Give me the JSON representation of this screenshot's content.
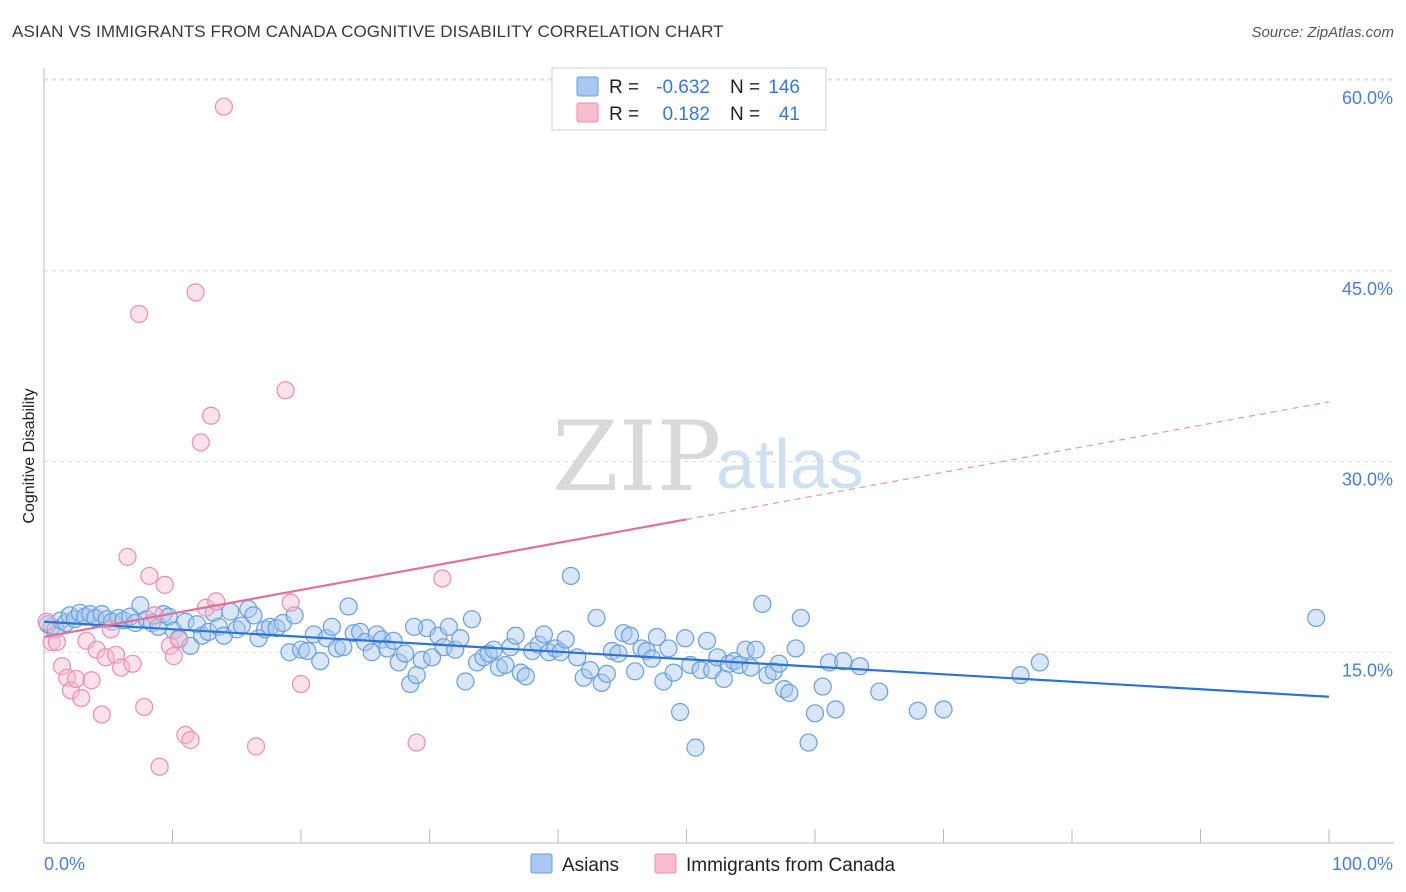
{
  "title": "ASIAN VS IMMIGRANTS FROM CANADA COGNITIVE DISABILITY CORRELATION CHART",
  "source": "Source: ZipAtlas.com",
  "watermark": {
    "zip": "ZIP",
    "atlas": "atlas"
  },
  "colors": {
    "asians_fill": "#a9c8ef",
    "asians_stroke": "#6a9fdc",
    "asians_line": "#2f73d0",
    "canada_fill": "#f6bccf",
    "canada_stroke": "#ea8fae",
    "canada_line": "#e2709a",
    "tick_label": "#4a7fcf",
    "grid": "#dddddd"
  },
  "legend": {
    "rows": [
      {
        "r_label": "R =",
        "r_value": "-0.632",
        "n_label": "N =",
        "n_value": "146"
      },
      {
        "r_label": "R =",
        "r_value": "0.182",
        "n_label": "N =",
        "n_value": "41"
      }
    ]
  },
  "chart_data": {
    "type": "scatter",
    "title": "ASIAN VS IMMIGRANTS FROM CANADA COGNITIVE DISABILITY CORRELATION CHART",
    "xlabel": "",
    "ylabel": "Cognitive Disability",
    "xlim": [
      0,
      100
    ],
    "ylim": [
      0,
      61
    ],
    "x_tick_labels": [
      "0.0%",
      "100.0%"
    ],
    "y_ticks": [
      15,
      30,
      45,
      60
    ],
    "y_tick_labels": [
      "15.0%",
      "30.0%",
      "45.0%",
      "60.0%"
    ],
    "grid": "horizontal dashed",
    "legend_position": "top-center",
    "series": [
      {
        "name": "Asians",
        "r": -0.632,
        "n": 146,
        "trend": {
          "x": [
            0,
            100
          ],
          "y": [
            17.4,
            11.5
          ]
        },
        "points": [
          [
            0.3,
            17.2
          ],
          [
            0.6,
            17.0
          ],
          [
            0.9,
            16.8
          ],
          [
            1.3,
            17.5
          ],
          [
            1.7,
            17.3
          ],
          [
            2.0,
            17.9
          ],
          [
            2.4,
            17.6
          ],
          [
            2.8,
            18.1
          ],
          [
            3.2,
            17.8
          ],
          [
            3.6,
            18.0
          ],
          [
            4.0,
            17.7
          ],
          [
            4.5,
            18.0
          ],
          [
            4.9,
            17.6
          ],
          [
            5.3,
            17.4
          ],
          [
            5.8,
            17.7
          ],
          [
            6.2,
            17.5
          ],
          [
            6.7,
            17.8
          ],
          [
            7.1,
            17.3
          ],
          [
            7.5,
            18.7
          ],
          [
            8.0,
            17.6
          ],
          [
            8.4,
            17.3
          ],
          [
            8.9,
            17.0
          ],
          [
            9.3,
            18.0
          ],
          [
            9.7,
            17.8
          ],
          [
            10.1,
            16.7
          ],
          [
            10.5,
            16.1
          ],
          [
            11.0,
            17.4
          ],
          [
            11.4,
            15.5
          ],
          [
            11.9,
            17.2
          ],
          [
            12.3,
            16.3
          ],
          [
            12.8,
            16.6
          ],
          [
            13.2,
            18.1
          ],
          [
            13.6,
            17.0
          ],
          [
            14.0,
            16.3
          ],
          [
            14.5,
            18.2
          ],
          [
            15.0,
            16.8
          ],
          [
            15.4,
            17.1
          ],
          [
            15.9,
            18.4
          ],
          [
            16.3,
            17.9
          ],
          [
            16.7,
            16.1
          ],
          [
            17.2,
            16.8
          ],
          [
            17.6,
            17.0
          ],
          [
            18.1,
            16.9
          ],
          [
            18.6,
            17.3
          ],
          [
            19.1,
            15.0
          ],
          [
            19.5,
            17.9
          ],
          [
            20.0,
            15.2
          ],
          [
            20.5,
            15.1
          ],
          [
            21.0,
            16.4
          ],
          [
            21.5,
            14.3
          ],
          [
            22.0,
            16.1
          ],
          [
            22.4,
            17.0
          ],
          [
            22.8,
            15.3
          ],
          [
            23.3,
            15.4
          ],
          [
            23.7,
            18.6
          ],
          [
            24.1,
            16.5
          ],
          [
            24.6,
            16.6
          ],
          [
            25.0,
            15.8
          ],
          [
            25.5,
            15.0
          ],
          [
            25.9,
            16.4
          ],
          [
            26.3,
            16.0
          ],
          [
            26.7,
            15.3
          ],
          [
            27.2,
            15.9
          ],
          [
            27.6,
            14.2
          ],
          [
            28.1,
            14.9
          ],
          [
            28.5,
            12.5
          ],
          [
            29.0,
            13.2
          ],
          [
            29.4,
            14.4
          ],
          [
            29.8,
            16.9
          ],
          [
            30.2,
            14.6
          ],
          [
            30.7,
            16.3
          ],
          [
            31.1,
            15.4
          ],
          [
            31.5,
            17.0
          ],
          [
            32.0,
            15.2
          ],
          [
            32.4,
            16.1
          ],
          [
            32.8,
            12.7
          ],
          [
            33.3,
            17.6
          ],
          [
            33.7,
            14.2
          ],
          [
            34.2,
            14.6
          ],
          [
            34.6,
            14.9
          ],
          [
            35.0,
            15.2
          ],
          [
            35.4,
            13.8
          ],
          [
            35.9,
            14.0
          ],
          [
            36.3,
            15.4
          ],
          [
            36.7,
            16.3
          ],
          [
            37.1,
            13.4
          ],
          [
            37.5,
            13.1
          ],
          [
            38.0,
            15.1
          ],
          [
            38.5,
            15.6
          ],
          [
            38.9,
            16.4
          ],
          [
            39.3,
            15.0
          ],
          [
            39.8,
            15.3
          ],
          [
            40.2,
            15.0
          ],
          [
            40.6,
            16.0
          ],
          [
            41.0,
            21.0
          ],
          [
            41.5,
            14.6
          ],
          [
            42.0,
            13.0
          ],
          [
            42.5,
            13.6
          ],
          [
            43.0,
            17.7
          ],
          [
            43.4,
            12.6
          ],
          [
            43.8,
            13.3
          ],
          [
            44.2,
            15.1
          ],
          [
            44.7,
            14.9
          ],
          [
            45.1,
            16.5
          ],
          [
            45.6,
            16.3
          ],
          [
            46.0,
            13.5
          ],
          [
            46.5,
            15.3
          ],
          [
            46.9,
            15.1
          ],
          [
            47.3,
            14.5
          ],
          [
            47.7,
            16.2
          ],
          [
            48.2,
            12.7
          ],
          [
            48.6,
            15.3
          ],
          [
            49.0,
            13.4
          ],
          [
            49.5,
            10.3
          ],
          [
            49.9,
            16.1
          ],
          [
            50.3,
            14.0
          ],
          [
            50.7,
            7.5
          ],
          [
            51.1,
            13.6
          ],
          [
            51.6,
            15.9
          ],
          [
            52.0,
            13.6
          ],
          [
            52.4,
            14.6
          ],
          [
            52.9,
            12.9
          ],
          [
            53.3,
            14.1
          ],
          [
            53.7,
            14.3
          ],
          [
            54.1,
            14.0
          ],
          [
            54.6,
            15.2
          ],
          [
            55.0,
            13.8
          ],
          [
            55.4,
            15.2
          ],
          [
            55.9,
            18.8
          ],
          [
            56.3,
            13.2
          ],
          [
            56.8,
            13.5
          ],
          [
            57.2,
            14.1
          ],
          [
            57.6,
            12.1
          ],
          [
            58.0,
            11.8
          ],
          [
            58.5,
            15.3
          ],
          [
            58.9,
            17.7
          ],
          [
            59.5,
            7.9
          ],
          [
            60.0,
            10.2
          ],
          [
            60.6,
            12.3
          ],
          [
            61.1,
            14.2
          ],
          [
            61.6,
            10.5
          ],
          [
            62.2,
            14.3
          ],
          [
            63.5,
            13.9
          ],
          [
            65.0,
            11.9
          ],
          [
            68.0,
            10.4
          ],
          [
            70.0,
            10.5
          ],
          [
            76.0,
            13.2
          ],
          [
            77.5,
            14.2
          ],
          [
            99.0,
            17.7
          ],
          [
            28.8,
            17.0
          ]
        ]
      },
      {
        "name": "Immigrants from Canada",
        "r": 0.182,
        "n": 41,
        "trend": {
          "x": [
            0,
            100
          ],
          "y": [
            16.2,
            34.7
          ],
          "solid_until_x": 50
        },
        "points": [
          [
            0.2,
            17.4
          ],
          [
            0.6,
            15.8
          ],
          [
            1.0,
            15.8
          ],
          [
            1.4,
            13.9
          ],
          [
            1.8,
            13.0
          ],
          [
            2.1,
            12.0
          ],
          [
            2.5,
            12.9
          ],
          [
            2.9,
            11.4
          ],
          [
            3.3,
            15.9
          ],
          [
            3.7,
            12.8
          ],
          [
            4.1,
            15.2
          ],
          [
            4.5,
            10.1
          ],
          [
            4.8,
            14.6
          ],
          [
            5.2,
            16.8
          ],
          [
            5.6,
            14.8
          ],
          [
            6.0,
            13.8
          ],
          [
            6.5,
            22.5
          ],
          [
            6.9,
            14.1
          ],
          [
            7.4,
            41.6
          ],
          [
            7.8,
            10.7
          ],
          [
            8.2,
            21.0
          ],
          [
            8.6,
            17.9
          ],
          [
            9.0,
            6.0
          ],
          [
            9.4,
            20.3
          ],
          [
            9.8,
            15.5
          ],
          [
            10.1,
            14.7
          ],
          [
            10.5,
            16.0
          ],
          [
            11.0,
            8.5
          ],
          [
            11.4,
            8.1
          ],
          [
            11.8,
            43.3
          ],
          [
            12.2,
            31.5
          ],
          [
            12.6,
            18.5
          ],
          [
            13.0,
            33.6
          ],
          [
            13.4,
            19.0
          ],
          [
            14.0,
            57.9
          ],
          [
            16.5,
            7.6
          ],
          [
            18.8,
            35.6
          ],
          [
            19.2,
            18.9
          ],
          [
            20.0,
            12.5
          ],
          [
            29.0,
            7.9
          ],
          [
            31.0,
            20.8
          ]
        ]
      }
    ]
  },
  "bottom_legend": [
    {
      "name": "Asians"
    },
    {
      "name": "Immigrants from Canada"
    }
  ]
}
